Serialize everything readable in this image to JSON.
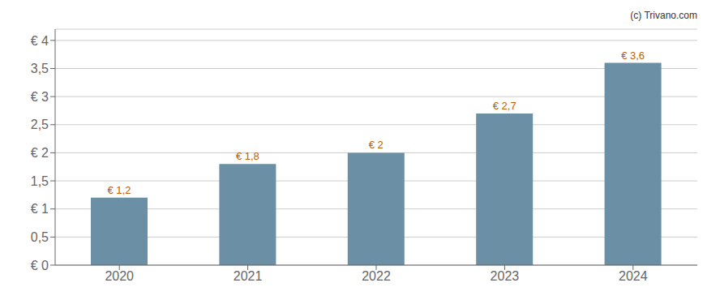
{
  "chart_data": {
    "type": "bar",
    "categories": [
      "2020",
      "2021",
      "2022",
      "2023",
      "2024"
    ],
    "values": [
      1.2,
      1.8,
      2.0,
      2.7,
      3.6
    ],
    "value_labels": [
      "€ 1,2",
      "€ 1,8",
      "€ 2",
      "€ 2,7",
      "€ 3,6"
    ],
    "data_labels": true,
    "color": "#6b8fa4",
    "ylim": [
      0,
      4.2
    ],
    "yticks": [
      {
        "value": 0,
        "label": "€ 0"
      },
      {
        "value": 0.5,
        "label": "0,5"
      },
      {
        "value": 1.0,
        "label": "€ 1"
      },
      {
        "value": 1.5,
        "label": "1,5"
      },
      {
        "value": 2.0,
        "label": "€ 2"
      },
      {
        "value": 2.5,
        "label": "2,5"
      },
      {
        "value": 3.0,
        "label": "€ 3"
      },
      {
        "value": 3.5,
        "label": "3,5"
      },
      {
        "value": 4.0,
        "label": "€ 4"
      }
    ],
    "grid": true,
    "annotations": [
      "(c) Trivano.com"
    ]
  }
}
